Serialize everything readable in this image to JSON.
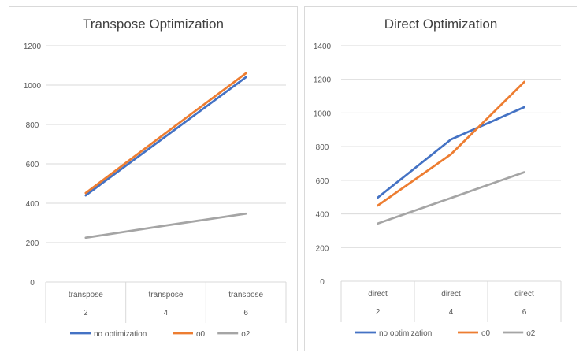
{
  "chart_data": [
    {
      "type": "line",
      "title": "Transpose Optimization",
      "categories": [
        [
          "transpose",
          "2"
        ],
        [
          "transpose",
          "4"
        ],
        [
          "transpose",
          "6"
        ]
      ],
      "ylim": [
        0,
        1200
      ],
      "yticks": [
        0,
        200,
        400,
        600,
        800,
        1000,
        1200
      ],
      "grid": true,
      "legend": "bottom",
      "series": [
        {
          "name": "no optimization",
          "color": "#4472C4",
          "values": [
            440,
            740,
            1040
          ]
        },
        {
          "name": "o0",
          "color": "#ED7D31",
          "values": [
            452,
            757,
            1060
          ]
        },
        {
          "name": "o2",
          "color": "#A5A5A5",
          "values": [
            225,
            287,
            347
          ]
        }
      ]
    },
    {
      "type": "line",
      "title": "Direct Optimization",
      "categories": [
        [
          "direct",
          "2"
        ],
        [
          "direct",
          "4"
        ],
        [
          "direct",
          "6"
        ]
      ],
      "ylim": [
        0,
        1400
      ],
      "yticks": [
        0,
        200,
        400,
        600,
        800,
        1000,
        1200,
        1400
      ],
      "grid": true,
      "legend": "bottom",
      "series": [
        {
          "name": "no optimization",
          "color": "#4472C4",
          "values": [
            497,
            843,
            1035
          ]
        },
        {
          "name": "o0",
          "color": "#ED7D31",
          "values": [
            450,
            755,
            1185
          ]
        },
        {
          "name": "o2",
          "color": "#A5A5A5",
          "values": [
            343,
            495,
            648
          ]
        }
      ]
    }
  ]
}
